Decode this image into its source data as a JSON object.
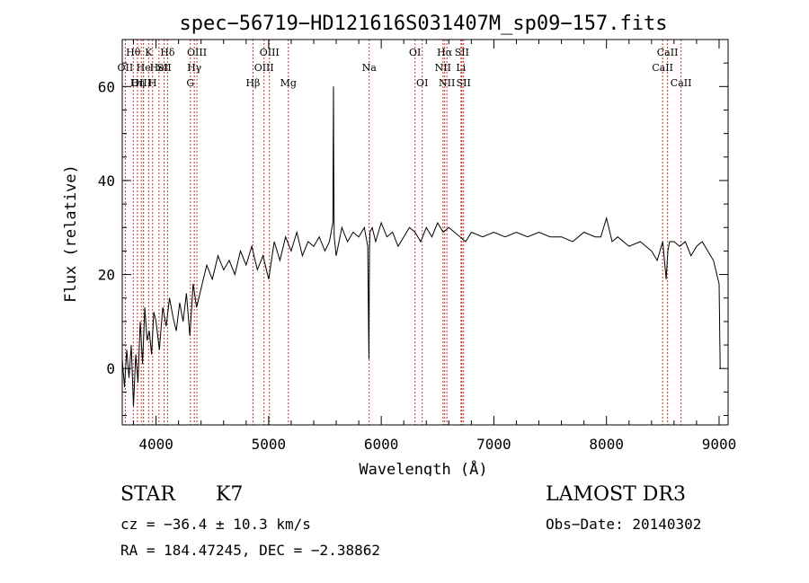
{
  "chart_data": {
    "type": "line",
    "title": "spec−56719−HD121616S031407M_sp09−157.fits",
    "xlabel": "Wavelength (Å)",
    "ylabel": "Flux (relative)",
    "xlim": [
      3700,
      9080
    ],
    "ylim": [
      -12,
      70
    ],
    "xticks": [
      4000,
      5000,
      6000,
      7000,
      8000,
      9000
    ],
    "yticks": [
      0,
      20,
      40,
      60
    ],
    "grid": false,
    "series": [
      {
        "name": "flux",
        "x": [
          3700,
          3720,
          3740,
          3760,
          3780,
          3800,
          3820,
          3840,
          3860,
          3880,
          3900,
          3920,
          3940,
          3960,
          3980,
          4000,
          4030,
          4060,
          4090,
          4120,
          4150,
          4180,
          4210,
          4240,
          4270,
          4300,
          4330,
          4360,
          4400,
          4450,
          4500,
          4550,
          4600,
          4650,
          4700,
          4750,
          4800,
          4850,
          4900,
          4950,
          5000,
          5050,
          5100,
          5150,
          5200,
          5250,
          5300,
          5350,
          5400,
          5450,
          5500,
          5540,
          5570,
          5576,
          5578,
          5582,
          5600,
          5650,
          5700,
          5750,
          5800,
          5850,
          5880,
          5890,
          5893,
          5896,
          5900,
          5920,
          5950,
          6000,
          6050,
          6100,
          6150,
          6200,
          6250,
          6300,
          6350,
          6400,
          6450,
          6500,
          6550,
          6600,
          6650,
          6700,
          6750,
          6800,
          6900,
          7000,
          7100,
          7200,
          7300,
          7400,
          7500,
          7600,
          7700,
          7800,
          7900,
          7950,
          8000,
          8050,
          8100,
          8200,
          8300,
          8400,
          8450,
          8500,
          8530,
          8545,
          8560,
          8600,
          8650,
          8700,
          8750,
          8800,
          8850,
          8900,
          8950,
          8980,
          9000,
          9010
        ],
        "values": [
          2,
          -4,
          4,
          -2,
          5,
          -8,
          3,
          -3,
          10,
          1,
          13,
          6,
          8,
          3,
          12,
          10,
          4,
          13,
          9,
          15,
          11,
          8,
          14,
          10,
          16,
          7,
          18,
          13,
          17,
          22,
          19,
          24,
          21,
          23,
          20,
          25,
          22,
          26,
          21,
          24,
          19,
          27,
          23,
          28,
          25,
          29,
          24,
          27,
          26,
          28,
          25,
          27,
          31,
          60,
          43,
          28,
          24,
          30,
          27,
          29,
          28,
          30,
          26,
          2,
          15,
          26,
          29,
          30,
          27,
          31,
          28,
          29,
          26,
          28,
          30,
          29,
          27,
          30,
          28,
          31,
          29,
          30,
          29,
          28,
          27,
          29,
          28,
          29,
          28,
          29,
          28,
          29,
          28,
          28,
          27,
          29,
          28,
          28,
          32,
          27,
          28,
          26,
          27,
          25,
          23,
          27,
          19,
          25,
          27,
          27,
          26,
          27,
          24,
          26,
          27,
          25,
          23,
          20,
          18,
          0
        ]
      }
    ],
    "lines": [
      {
        "label": "Hθ",
        "wavelength": 3798,
        "row": 1
      },
      {
        "label": "OII",
        "wavelength": 3727,
        "row": 2
      },
      {
        "label": "OIII",
        "wavelength": 3869,
        "row": 3
      },
      {
        "label": "He",
        "wavelength": 3889,
        "row": 2
      },
      {
        "label": "Hη",
        "wavelength": 3835,
        "row": 3
      },
      {
        "label": "K",
        "wavelength": 3934,
        "row": 1
      },
      {
        "label": "H",
        "wavelength": 3969,
        "row": 3
      },
      {
        "label": "HeI",
        "wavelength": 4026,
        "row": 2
      },
      {
        "label": "SII",
        "wavelength": 4072,
        "row": 2
      },
      {
        "label": "Hδ",
        "wavelength": 4102,
        "row": 1
      },
      {
        "label": "G",
        "wavelength": 4305,
        "row": 3
      },
      {
        "label": "Hγ",
        "wavelength": 4340,
        "row": 2
      },
      {
        "label": "OIII",
        "wavelength": 4363,
        "row": 1
      },
      {
        "label": "Hβ",
        "wavelength": 4861,
        "row": 3
      },
      {
        "label": "OIII",
        "wavelength": 4959,
        "row": 2
      },
      {
        "label": "OIII",
        "wavelength": 5007,
        "row": 1
      },
      {
        "label": "Mg",
        "wavelength": 5175,
        "row": 3
      },
      {
        "label": "Na",
        "wavelength": 5893,
        "row": 2
      },
      {
        "label": "OI",
        "wavelength": 6300,
        "row": 1
      },
      {
        "label": "OI",
        "wavelength": 6364,
        "row": 3
      },
      {
        "label": "NII",
        "wavelength": 6548,
        "row": 2
      },
      {
        "label": "Hα",
        "wavelength": 6563,
        "row": 1
      },
      {
        "label": "NII",
        "wavelength": 6583,
        "row": 3
      },
      {
        "label": "Li",
        "wavelength": 6708,
        "row": 2
      },
      {
        "label": "SII",
        "wavelength": 6716,
        "row": 1
      },
      {
        "label": "SII",
        "wavelength": 6731,
        "row": 3
      },
      {
        "label": "CaII",
        "wavelength": 8498,
        "row": 2
      },
      {
        "label": "CaII",
        "wavelength": 8542,
        "row": 1
      },
      {
        "label": "CaII",
        "wavelength": 8662,
        "row": 3
      }
    ]
  },
  "info": {
    "class": "STAR",
    "subclass": "K7",
    "survey": "LAMOST DR3",
    "cz": "cz = −36.4 ± 10.3 km/s",
    "obs_date": "Obs−Date: 20140302",
    "radec": "RA = 184.47245, DEC =  −2.38862"
  },
  "colors": {
    "frame": "#000000",
    "spectrum": "#000000",
    "marker": "#c0392b"
  }
}
